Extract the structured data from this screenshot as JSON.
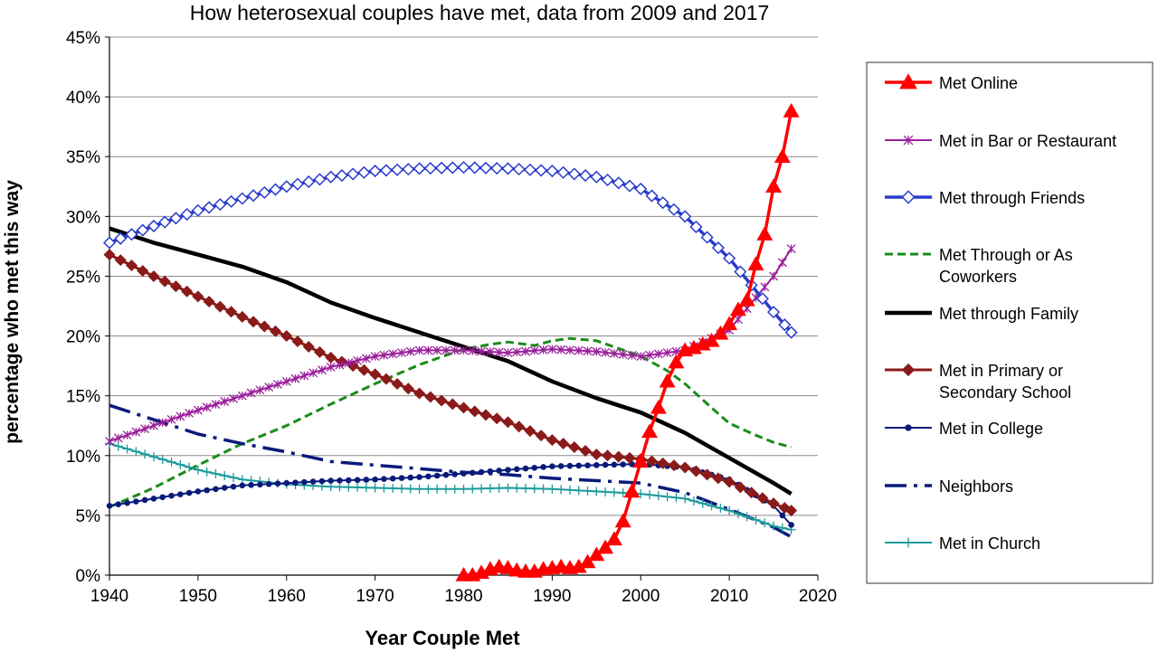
{
  "chart_data": {
    "type": "line",
    "title": "How heterosexual couples have met, data from 2009 and 2017",
    "xlabel": "Year Couple Met",
    "ylabel": "percentage who met this way",
    "xlim": [
      1940,
      2020
    ],
    "ylim": [
      0,
      45
    ],
    "x_ticks": [
      "1940",
      "1950",
      "1960",
      "1970",
      "1980",
      "1990",
      "2000",
      "2010",
      "2020"
    ],
    "y_ticks": [
      "0%",
      "5%",
      "10%",
      "15%",
      "20%",
      "25%",
      "30%",
      "35%",
      "40%",
      "45%"
    ],
    "grid": "horizontal",
    "legend_position": "right",
    "series": [
      {
        "name": "Met Online",
        "color": "#ff0000",
        "line": "solid",
        "marker": "triangle",
        "x": [
          1980,
          1981,
          1982,
          1983,
          1984,
          1985,
          1986,
          1987,
          1988,
          1989,
          1990,
          1991,
          1992,
          1993,
          1994,
          1995,
          1996,
          1997,
          1998,
          1999,
          2000,
          2001,
          2002,
          2003,
          2004,
          2005,
          2006,
          2007,
          2008,
          2009,
          2010,
          2011,
          2012,
          2013,
          2014,
          2015,
          2016,
          2017
        ],
        "y": [
          0,
          0,
          0.2,
          0.5,
          0.7,
          0.6,
          0.4,
          0.3,
          0.3,
          0.5,
          0.6,
          0.7,
          0.6,
          0.7,
          1.1,
          1.7,
          2.3,
          3.0,
          4.5,
          7.0,
          9.5,
          12.0,
          14.0,
          16.2,
          17.8,
          18.8,
          19.0,
          19.3,
          19.6,
          20.2,
          21.0,
          22.2,
          23.0,
          26.0,
          28.5,
          32.5,
          35.0,
          38.8
        ]
      },
      {
        "name": "Met in Bar or Restaurant",
        "color": "#9b1f9b",
        "line": "solid",
        "marker": "star",
        "x": [
          1940,
          1945,
          1950,
          1955,
          1960,
          1965,
          1970,
          1975,
          1980,
          1985,
          1990,
          1995,
          2000,
          2005,
          2010,
          2015,
          2017
        ],
        "y": [
          11.2,
          12.5,
          13.8,
          15.0,
          16.2,
          17.4,
          18.3,
          18.8,
          18.8,
          18.6,
          18.9,
          18.7,
          18.3,
          18.8,
          20.5,
          25.0,
          27.3
        ]
      },
      {
        "name": "Met through Friends",
        "color": "#2a3ccc",
        "line": "solid",
        "marker": "diamond-open",
        "x": [
          1940,
          1945,
          1950,
          1955,
          1960,
          1965,
          1970,
          1975,
          1980,
          1985,
          1990,
          1995,
          2000,
          2005,
          2010,
          2015,
          2017
        ],
        "y": [
          27.8,
          29.2,
          30.5,
          31.5,
          32.5,
          33.3,
          33.8,
          34.0,
          34.1,
          34.0,
          33.8,
          33.3,
          32.3,
          30.0,
          26.5,
          22.0,
          20.3
        ]
      },
      {
        "name": "Met Through or As Coworkers",
        "color": "#1a8c1a",
        "line": "dashed",
        "marker": "none",
        "x": [
          1940,
          1945,
          1950,
          1955,
          1960,
          1965,
          1970,
          1975,
          1980,
          1983,
          1985,
          1988,
          1990,
          1992,
          1995,
          2000,
          2003,
          2005,
          2008,
          2010,
          2013,
          2015,
          2017
        ],
        "y": [
          5.7,
          7.3,
          9.2,
          11.0,
          12.5,
          14.3,
          16.0,
          17.6,
          18.9,
          19.3,
          19.5,
          19.2,
          19.6,
          19.8,
          19.6,
          18.3,
          17.1,
          16.0,
          14.0,
          12.7,
          11.7,
          11.1,
          10.7
        ]
      },
      {
        "name": "Met through Family",
        "color": "#000000",
        "line": "solid-thick",
        "marker": "none",
        "x": [
          1940,
          1945,
          1950,
          1955,
          1960,
          1965,
          1970,
          1975,
          1980,
          1985,
          1990,
          1995,
          2000,
          2005,
          2010,
          2015,
          2017
        ],
        "y": [
          29.0,
          27.8,
          26.8,
          25.8,
          24.5,
          22.8,
          21.5,
          20.3,
          19.1,
          17.9,
          16.2,
          14.8,
          13.6,
          11.9,
          9.8,
          7.7,
          6.8
        ]
      },
      {
        "name": "Met in Primary or Secondary School",
        "color": "#8b1a1a",
        "line": "solid",
        "marker": "diamond-filled",
        "x": [
          1940,
          1945,
          1950,
          1955,
          1960,
          1965,
          1970,
          1975,
          1980,
          1985,
          1990,
          1995,
          2000,
          2005,
          2010,
          2015,
          2017
        ],
        "y": [
          26.8,
          25.0,
          23.3,
          21.6,
          20.0,
          18.2,
          16.8,
          15.2,
          14.0,
          12.8,
          11.3,
          10.1,
          9.7,
          9.0,
          7.8,
          6.0,
          5.4
        ]
      },
      {
        "name": "Met in College",
        "color": "#0a1a7a",
        "line": "solid",
        "marker": "circle",
        "x": [
          1940,
          1945,
          1950,
          1955,
          1960,
          1965,
          1970,
          1975,
          1980,
          1985,
          1990,
          1995,
          2000,
          2005,
          2010,
          2015,
          2017
        ],
        "y": [
          5.8,
          6.4,
          7.0,
          7.5,
          7.7,
          7.9,
          8.0,
          8.2,
          8.5,
          8.8,
          9.1,
          9.2,
          9.3,
          9.0,
          8.0,
          5.8,
          4.2
        ]
      },
      {
        "name": "Neighbors",
        "color": "#0a1a7a",
        "line": "dash-dot",
        "marker": "none",
        "x": [
          1940,
          1945,
          1950,
          1955,
          1960,
          1965,
          1970,
          1975,
          1980,
          1985,
          1990,
          1995,
          2000,
          2005,
          2010,
          2015,
          2017
        ],
        "y": [
          14.2,
          13.0,
          11.8,
          11.0,
          10.3,
          9.5,
          9.2,
          8.9,
          8.6,
          8.4,
          8.1,
          7.9,
          7.7,
          6.9,
          5.5,
          4.0,
          3.2
        ]
      },
      {
        "name": "Met in Church",
        "color": "#1a9a9a",
        "line": "solid",
        "marker": "plus",
        "x": [
          1940,
          1945,
          1950,
          1955,
          1960,
          1965,
          1970,
          1975,
          1980,
          1985,
          1990,
          1995,
          2000,
          2005,
          2010,
          2015,
          2017
        ],
        "y": [
          11.0,
          9.9,
          8.8,
          8.0,
          7.6,
          7.4,
          7.3,
          7.2,
          7.2,
          7.3,
          7.2,
          7.0,
          6.8,
          6.4,
          5.4,
          4.1,
          3.8
        ]
      }
    ],
    "legend": [
      {
        "lines": [
          "Met Online"
        ]
      },
      {
        "lines": [
          "Met in Bar or Restaurant"
        ]
      },
      {
        "lines": [
          "Met through Friends"
        ]
      },
      {
        "lines": [
          "Met Through or As",
          "Coworkers"
        ]
      },
      {
        "lines": [
          "Met through Family"
        ]
      },
      {
        "lines": [
          "Met in Primary or",
          "Secondary School"
        ]
      },
      {
        "lines": [
          "Met in College"
        ]
      },
      {
        "lines": [
          "Neighbors"
        ]
      },
      {
        "lines": [
          "Met in Church"
        ]
      }
    ]
  }
}
